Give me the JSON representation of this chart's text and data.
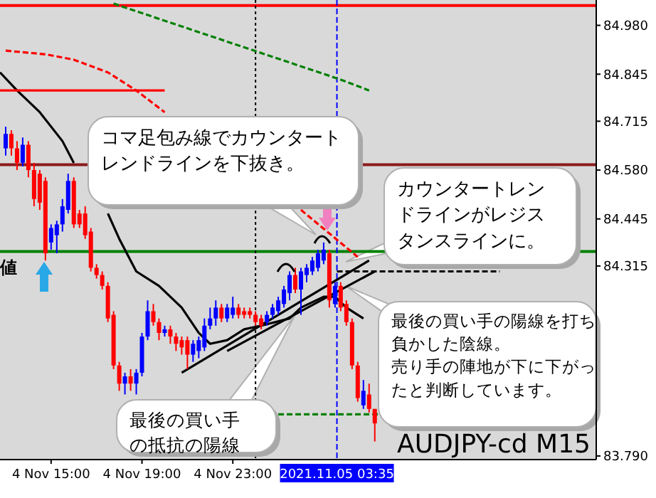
{
  "chart_data": {
    "type": "candlestick",
    "x": [
      "2021-11-04T13:00",
      "2021-11-04T13:15",
      "2021-11-04T13:30",
      "2021-11-04T13:45",
      "2021-11-04T14:00",
      "2021-11-04T14:15",
      "2021-11-04T14:30",
      "2021-11-04T14:45",
      "2021-11-04T15:00",
      "2021-11-04T15:15",
      "2021-11-04T15:30",
      "2021-11-04T15:45",
      "2021-11-04T16:00",
      "2021-11-04T16:15",
      "2021-11-04T16:30",
      "2021-11-04T16:45",
      "2021-11-04T17:00",
      "2021-11-04T17:15",
      "2021-11-04T17:30",
      "2021-11-04T17:45",
      "2021-11-04T18:00",
      "2021-11-04T18:15",
      "2021-11-04T18:30",
      "2021-11-04T18:45",
      "2021-11-04T19:00",
      "2021-11-04T19:15",
      "2021-11-04T19:30",
      "2021-11-04T19:45",
      "2021-11-04T20:00",
      "2021-11-04T20:15",
      "2021-11-04T20:30",
      "2021-11-04T20:45",
      "2021-11-04T21:00",
      "2021-11-04T21:15",
      "2021-11-04T21:30",
      "2021-11-04T21:45",
      "2021-11-04T22:00",
      "2021-11-04T22:15",
      "2021-11-04T22:30",
      "2021-11-04T22:45",
      "2021-11-04T23:00",
      "2021-11-04T23:15",
      "2021-11-04T23:30",
      "2021-11-04T23:45",
      "2021-11-05T00:00",
      "2021-11-05T00:15",
      "2021-11-05T00:30",
      "2021-11-05T00:45",
      "2021-11-05T01:00",
      "2021-11-05T01:15",
      "2021-11-05T01:30",
      "2021-11-05T01:45",
      "2021-11-05T02:00",
      "2021-11-05T02:15",
      "2021-11-05T02:30",
      "2021-11-05T02:45",
      "2021-11-05T03:00",
      "2021-11-05T03:15",
      "2021-11-05T03:30",
      "2021-11-05T03:45",
      "2021-11-05T04:00",
      "2021-11-05T04:15",
      "2021-11-05T04:30",
      "2021-11-05T04:45",
      "2021-11-05T05:00",
      "2021-11-05T05:15"
    ],
    "ohlc": [
      [
        84.64,
        84.7,
        84.62,
        84.68
      ],
      [
        84.68,
        84.69,
        84.62,
        84.64
      ],
      [
        84.64,
        84.66,
        84.58,
        84.6
      ],
      [
        84.6,
        84.67,
        84.59,
        84.65
      ],
      [
        84.65,
        84.66,
        84.56,
        84.58
      ],
      [
        84.58,
        84.6,
        84.48,
        84.5
      ],
      [
        84.57,
        84.58,
        84.47,
        84.49
      ],
      [
        84.55,
        84.56,
        84.33,
        84.35
      ],
      [
        84.38,
        84.43,
        84.36,
        84.42
      ],
      [
        84.4,
        84.44,
        84.35,
        84.43
      ],
      [
        84.43,
        84.5,
        84.41,
        84.48
      ],
      [
        84.47,
        84.57,
        84.46,
        84.55
      ],
      [
        84.55,
        84.56,
        84.42,
        84.43
      ],
      [
        84.46,
        84.47,
        84.42,
        84.43
      ],
      [
        84.46,
        84.48,
        84.39,
        84.4
      ],
      [
        84.41,
        84.42,
        84.3,
        84.31
      ],
      [
        84.31,
        84.32,
        84.28,
        84.29
      ],
      [
        84.29,
        84.3,
        84.25,
        84.26
      ],
      [
        84.26,
        84.27,
        84.16,
        84.17
      ],
      [
        84.18,
        84.19,
        84.03,
        84.04
      ],
      [
        84.04,
        84.05,
        83.97,
        83.99
      ],
      [
        83.99,
        84.02,
        83.96,
        84.01
      ],
      [
        84.01,
        84.03,
        83.97,
        83.99
      ],
      [
        83.99,
        84.03,
        83.96,
        84.02
      ],
      [
        84.02,
        84.13,
        84.01,
        84.12
      ],
      [
        84.12,
        84.22,
        84.11,
        84.19
      ],
      [
        84.19,
        84.21,
        84.15,
        84.16
      ],
      [
        84.16,
        84.17,
        84.11,
        84.13
      ],
      [
        84.13,
        84.15,
        84.12,
        84.14
      ],
      [
        84.14,
        84.15,
        84.1,
        84.12
      ],
      [
        84.12,
        84.13,
        84.08,
        84.1
      ],
      [
        84.11,
        84.12,
        84.07,
        84.09
      ],
      [
        84.11,
        84.12,
        84.03,
        84.07
      ],
      [
        84.07,
        84.11,
        84.05,
        84.1
      ],
      [
        84.08,
        84.12,
        84.06,
        84.11
      ],
      [
        84.09,
        84.17,
        84.08,
        84.15
      ],
      [
        84.15,
        84.2,
        84.14,
        84.17
      ],
      [
        84.17,
        84.22,
        84.15,
        84.2
      ],
      [
        84.2,
        84.21,
        84.16,
        84.17
      ],
      [
        84.17,
        84.21,
        84.16,
        84.2
      ],
      [
        84.18,
        84.23,
        84.17,
        84.2
      ],
      [
        84.2,
        84.21,
        84.17,
        84.18
      ],
      [
        84.19,
        84.2,
        84.17,
        84.18
      ],
      [
        84.19,
        84.2,
        84.17,
        84.18
      ],
      [
        84.18,
        84.19,
        84.15,
        84.16
      ],
      [
        84.17,
        84.18,
        84.14,
        84.15
      ],
      [
        84.16,
        84.19,
        84.15,
        84.18
      ],
      [
        84.18,
        84.21,
        84.17,
        84.2
      ],
      [
        84.19,
        84.23,
        84.18,
        84.22
      ],
      [
        84.21,
        84.26,
        84.2,
        84.25
      ],
      [
        84.24,
        84.3,
        84.22,
        84.29
      ],
      [
        84.29,
        84.31,
        84.24,
        84.25
      ],
      [
        84.25,
        84.31,
        84.18,
        84.3
      ],
      [
        84.29,
        84.32,
        84.27,
        84.31
      ],
      [
        84.3,
        84.34,
        84.29,
        84.33
      ],
      [
        84.31,
        84.36,
        84.3,
        84.35
      ],
      [
        84.33,
        84.38,
        84.32,
        84.36
      ],
      [
        84.35,
        84.36,
        84.2,
        84.22
      ],
      [
        84.21,
        84.27,
        84.2,
        84.26
      ],
      [
        84.26,
        84.27,
        84.19,
        84.2
      ],
      [
        84.21,
        84.22,
        84.15,
        84.16
      ],
      [
        84.16,
        84.17,
        84.03,
        84.04
      ],
      [
        84.04,
        84.05,
        83.94,
        83.95
      ],
      [
        83.93,
        84.0,
        83.92,
        83.97
      ],
      [
        83.96,
        83.99,
        83.91,
        83.92
      ],
      [
        83.92,
        83.92,
        83.83,
        83.88
      ]
    ],
    "colors": [
      "#0000ff",
      "#ff0000",
      "#ff0000",
      "#0000ff",
      "#ff0000",
      "#ff0000",
      "#ff0000",
      "#ff0000",
      "#0000ff",
      "#0000ff",
      "#0000ff",
      "#0000ff",
      "#ff0000",
      "#ff0000",
      "#ff0000",
      "#ff0000",
      "#ff0000",
      "#ff0000",
      "#ff0000",
      "#ff0000",
      "#ff0000",
      "#0000ff",
      "#ff0000",
      "#0000ff",
      "#0000ff",
      "#0000ff",
      "#ff0000",
      "#ff0000",
      "#0000ff",
      "#ff0000",
      "#ff0000",
      "#ff0000",
      "#ff0000",
      "#0000ff",
      "#0000ff",
      "#0000ff",
      "#0000ff",
      "#0000ff",
      "#ff0000",
      "#0000ff",
      "#0000ff",
      "#ff0000",
      "#ff0000",
      "#ff0000",
      "#ff0000",
      "#ff0000",
      "#0000ff",
      "#0000ff",
      "#0000ff",
      "#0000ff",
      "#0000ff",
      "#ff0000",
      "#0000ff",
      "#0000ff",
      "#0000ff",
      "#0000ff",
      "#0000ff",
      "#ff0000",
      "#0000ff",
      "#ff0000",
      "#ff0000",
      "#ff0000",
      "#ff0000",
      "#0000ff",
      "#ff0000",
      "#ff0000"
    ],
    "series": [
      {
        "type": "line",
        "color": "#000000",
        "line_style": "solid",
        "x": [
          "2021-11-04T12:45",
          "2021-11-04T13:30",
          "2021-11-04T14:30",
          "2021-11-04T15:30",
          "2021-11-04T16:00",
          "2021-11-04T16:45",
          "2021-11-04T17:30",
          "2021-11-04T18:00",
          "2021-11-04T18:45",
          "2021-11-04T19:45",
          "2021-11-04T20:45",
          "2021-11-04T21:30",
          "2021-11-04T22:00",
          "2021-11-04T22:45",
          "2021-11-04T23:30",
          "2021-11-05T00:15",
          "2021-11-05T01:30",
          "2021-11-05T02:00",
          "2021-11-05T03:00",
          "2021-11-05T03:30",
          "2021-11-05T04:00",
          "2021-11-05T04:45"
        ],
        "values": [
          84.85,
          84.8,
          84.74,
          84.66,
          84.6,
          null,
          84.46,
          84.39,
          84.3,
          84.26,
          84.2,
          84.13,
          84.1,
          84.11,
          84.14,
          84.15,
          84.17,
          84.2,
          84.23,
          84.23,
          84.2,
          84.17
        ]
      },
      {
        "type": "line",
        "color": "#000000",
        "line_style": "solid",
        "x": [
          "2021-11-04T20:45",
          "2021-11-05T05:00"
        ],
        "values": [
          84.02,
          84.33
        ]
      },
      {
        "type": "line",
        "color": "#000000",
        "line_style": "solid",
        "x": [
          "2021-11-04T22:45",
          "2021-11-05T05:15"
        ],
        "values": [
          84.08,
          84.3
        ]
      },
      {
        "type": "line",
        "color": "#000000",
        "line_style": "dashed",
        "x": [
          "2021-11-05T03:35",
          "2021-11-05T10:45"
        ],
        "values": [
          84.3,
          84.3
        ]
      },
      {
        "type": "line",
        "color": "#008000",
        "line_style": "dashed",
        "x": [
          "2021-11-05T01:00",
          "2021-11-05T05:30"
        ],
        "values": [
          83.905,
          83.905
        ]
      },
      {
        "type": "line",
        "color": "#008000",
        "line_style": "dashed",
        "x": [
          "2021-11-04T17:45",
          "2021-11-05T03:45",
          "2021-11-05T05:00"
        ],
        "values": [
          85.04,
          84.83,
          84.8
        ]
      },
      {
        "type": "line",
        "color": "#ff0000",
        "line_style": "dashed",
        "x": [
          "2021-11-04T13:00",
          "2021-11-04T14:45",
          "2021-11-04T16:00",
          "2021-11-04T17:30",
          "2021-11-04T18:45",
          "2021-11-04T20:00"
        ],
        "values": [
          84.91,
          84.9,
          84.885,
          84.85,
          84.8,
          84.74
        ]
      },
      {
        "type": "line",
        "color": "#ff0000",
        "line_style": "dashed",
        "x": [
          "2021-11-05T02:00",
          "2021-11-05T04:30"
        ],
        "values": [
          84.47,
          84.34
        ]
      },
      {
        "type": "line",
        "color": "#ff0000",
        "line_style": "solid",
        "x": [
          "2021-11-04T12:45",
          "2021-11-04T20:00"
        ],
        "values": [
          84.8,
          84.8
        ]
      }
    ],
    "ref_lines": [
      {
        "axis": "y",
        "value": 85.035,
        "color": "#ff0000",
        "line_style": "solid"
      },
      {
        "axis": "y",
        "value": 84.595,
        "color": "#8b1a1a",
        "line_style": "solid"
      },
      {
        "axis": "y",
        "value": 84.355,
        "color": "#008000",
        "line_style": "solid"
      },
      {
        "axis": "x",
        "value": "2021-11-05T00:00",
        "color": "#000000",
        "line_style": "dotted"
      },
      {
        "axis": "x",
        "value": "2021-11-05T03:35",
        "color": "#0000ff",
        "line_style": "dashed",
        "label": "2021.11.05 03:35"
      }
    ],
    "annotations": [
      "コマ足包み線でカウンタートレンドラインを下抜き。",
      "カウンタートレンドラインがレジスタンスラインに。",
      "最後の買い手の陽線を打ち負かした陰線。売り手の陣地が下に下がったと判断しています。",
      "最後の買い手の抵抗の陽線",
      "AUDJPY-cd M15",
      "値"
    ],
    "xlim": [
      "2021-11-04T12:45",
      "2021-11-05T15:00"
    ],
    "ylim": [
      83.78,
      85.05
    ],
    "xticks": [
      {
        "value": "2021-11-04T15:00",
        "label": "4 Nov 15:00"
      },
      {
        "value": "2021-11-04T19:00",
        "label": "4 Nov 19:00"
      },
      {
        "value": "2021-11-04T23:00",
        "label": "4 Nov 23:00"
      }
    ],
    "yticks": [
      {
        "value": 84.98,
        "label": "84.980"
      },
      {
        "value": 84.845,
        "label": "84.845"
      },
      {
        "value": 84.715,
        "label": "84.715"
      },
      {
        "value": 84.58,
        "label": "84.580"
      },
      {
        "value": 84.445,
        "label": "84.445"
      },
      {
        "value": 84.315,
        "label": "84.315"
      },
      {
        "value": 83.79,
        "label": "83.790"
      }
    ]
  }
}
